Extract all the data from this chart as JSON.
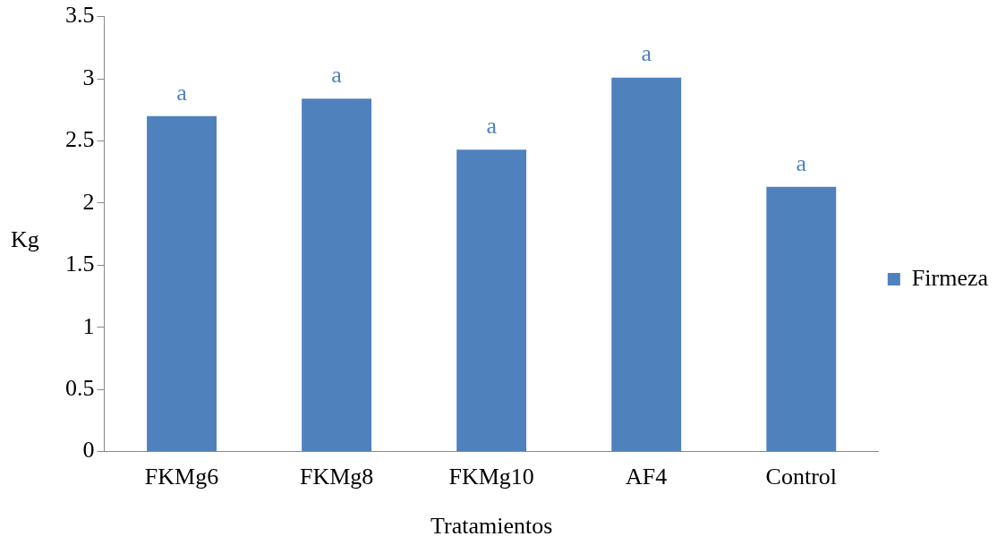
{
  "chart_data": {
    "type": "bar",
    "xlabel": "Tratamientos",
    "ylabel": "Kg",
    "categories": [
      "FKMg6",
      "FKMg8",
      "FKMg10",
      "AF4",
      "Control"
    ],
    "series": [
      {
        "name": "Firmeza",
        "color": "#4f81bd",
        "values": [
          2.7,
          2.84,
          2.43,
          3.01,
          2.13
        ]
      }
    ],
    "ylim": [
      0,
      3.5
    ],
    "yticks": [
      0,
      0.5,
      1,
      1.5,
      2,
      2.5,
      3,
      3.5
    ],
    "grid": false,
    "legend": "right",
    "annotations": [
      {
        "text": "a",
        "x": "FKMg6",
        "y": 2.7
      },
      {
        "text": "a",
        "x": "FKMg8",
        "y": 2.84
      },
      {
        "text": "a",
        "x": "FKMg10",
        "y": 2.43
      },
      {
        "text": "a",
        "x": "AF4",
        "y": 3.01
      },
      {
        "text": "a",
        "x": "Control",
        "y": 2.13
      }
    ]
  }
}
